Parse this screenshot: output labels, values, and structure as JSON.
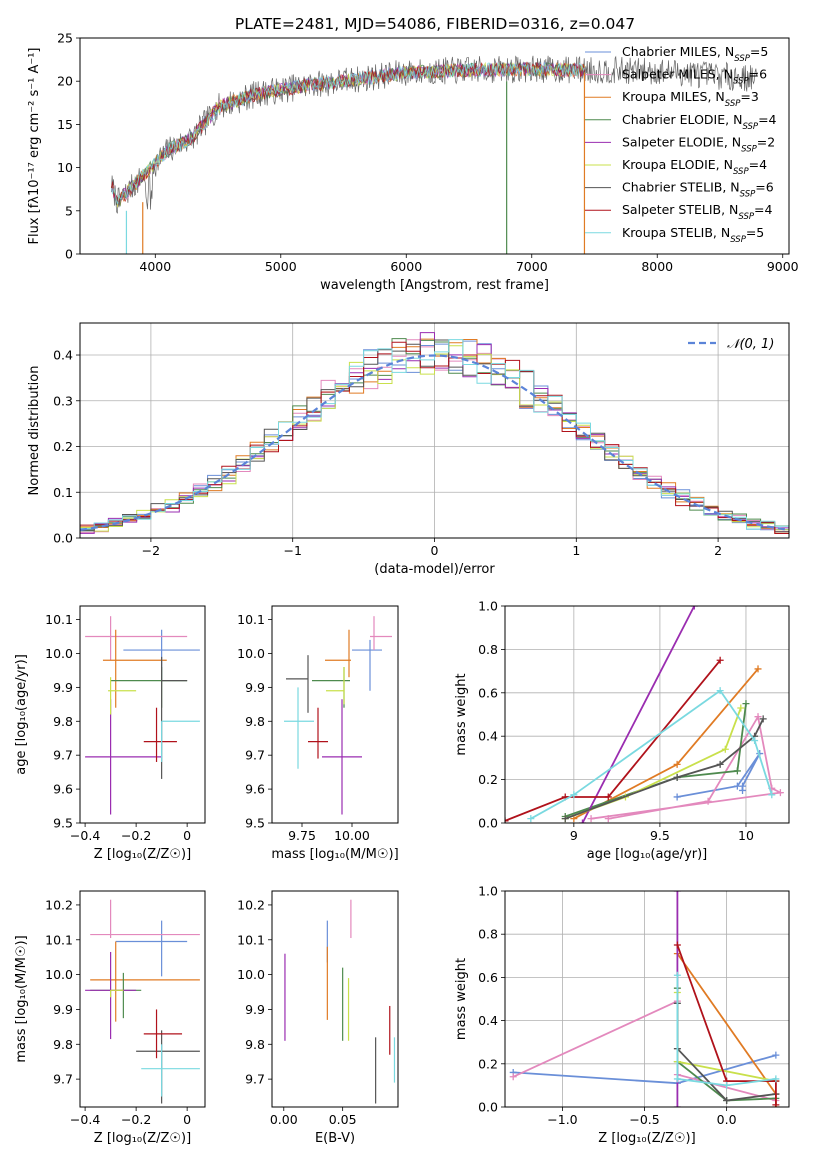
{
  "figure": {
    "title": "PLATE=2481, MJD=54086, FIBERID=0316, z=0.047"
  },
  "models": [
    {
      "name": "Chabrier MILES",
      "nssp": "5",
      "color": "#6a8fd8"
    },
    {
      "name": "Salpeter MILES",
      "nssp": "6",
      "color": "#e389bd"
    },
    {
      "name": "Kroupa MILES",
      "nssp": "3",
      "color": "#e07b24"
    },
    {
      "name": "Chabrier ELODIE",
      "nssp": "4",
      "color": "#4e8a4e"
    },
    {
      "name": "Salpeter ELODIE",
      "nssp": "2",
      "color": "#9a2db0"
    },
    {
      "name": "Kroupa ELODIE",
      "nssp": "4",
      "color": "#c9e04b"
    },
    {
      "name": "Chabrier STELIB",
      "nssp": "6",
      "color": "#555555"
    },
    {
      "name": "Salpeter STELIB",
      "nssp": "4",
      "color": "#b0121b"
    },
    {
      "name": "Kroupa STELIB",
      "nssp": "5",
      "color": "#7ad9e0"
    }
  ],
  "chart_data": [
    {
      "id": "spectrum",
      "type": "line",
      "xlabel": "wavelength [Angstrom, rest frame]",
      "ylabel": "Flux [fλ10⁻¹⁷ erg cm⁻² s⁻¹ A⁻¹]",
      "xlim": [
        3400,
        9050
      ],
      "ylim": [
        0,
        25
      ],
      "xticks": [
        4000,
        5000,
        6000,
        7000,
        8000,
        9000
      ],
      "yticks": [
        0,
        5,
        10,
        15,
        20,
        25
      ],
      "grid": false,
      "legend": "top-right",
      "observed_range": [
        3650,
        8800
      ],
      "model_range": [
        3650,
        7420
      ],
      "continuum": [
        [
          3650,
          8
        ],
        [
          3700,
          6
        ],
        [
          3800,
          7.5
        ],
        [
          3900,
          9
        ],
        [
          4000,
          10.5
        ],
        [
          4100,
          12
        ],
        [
          4300,
          13.5
        ],
        [
          4500,
          17
        ],
        [
          4800,
          18.5
        ],
        [
          5200,
          19.5
        ],
        [
          5600,
          20.2
        ],
        [
          6000,
          21
        ],
        [
          6500,
          21.3
        ],
        [
          7000,
          21.4
        ],
        [
          7400,
          21.3
        ],
        [
          7800,
          21.2
        ],
        [
          8200,
          21
        ],
        [
          8500,
          20.6
        ],
        [
          8800,
          20.3
        ]
      ]
    },
    {
      "id": "residuals",
      "type": "line",
      "xlabel": "(data-model)/error",
      "ylabel": "Normed distribution",
      "xlim": [
        -2.5,
        2.5
      ],
      "ylim": [
        0,
        0.47
      ],
      "xticks": [
        -2,
        -1,
        0,
        1,
        2
      ],
      "yticks": [
        0.0,
        0.1,
        0.2,
        0.3,
        0.4
      ],
      "grid": true,
      "legend": "top-right",
      "legend_label": "𝒩(0, 1)",
      "bin_width": 0.1,
      "series_style": "step histogram, one per model"
    },
    {
      "id": "age_vs_Z",
      "type": "scatter",
      "xlabel": "Z [log₁₀(Z/Z☉)]",
      "ylabel": "age  [log₁₀(age/yr)]",
      "xlim": [
        -0.42,
        0.07
      ],
      "ylim": [
        9.5,
        10.14
      ],
      "xticks": [
        -0.4,
        -0.2,
        0.0
      ],
      "yticks": [
        9.5,
        9.6,
        9.7,
        9.8,
        9.9,
        10.0,
        10.1
      ],
      "grid": false,
      "points": [
        {
          "x": -0.1,
          "y": 10.01,
          "xerr": [
            0.15,
            0.15
          ],
          "yerr": [
            0.09,
            0.06
          ]
        },
        {
          "x": -0.3,
          "y": 10.05,
          "xerr": [
            0.1,
            0.3
          ],
          "yerr": [
            0.07,
            0.06
          ]
        },
        {
          "x": -0.28,
          "y": 9.98,
          "xerr": [
            0.05,
            0.2
          ],
          "yerr": [
            0.14,
            0.09
          ]
        },
        {
          "x": -0.1,
          "y": 9.92,
          "xerr": [
            0.2,
            0.1
          ],
          "yerr": [
            0.08,
            0.04
          ]
        },
        {
          "x": -0.3,
          "y": 9.695,
          "xerr": [
            0.1,
            0.2
          ],
          "yerr": [
            0.17,
            0.17
          ]
        },
        {
          "x": -0.3,
          "y": 9.89,
          "xerr": [
            0.01,
            0.1
          ],
          "yerr": [
            0.07,
            0.04
          ]
        },
        {
          "x": -0.1,
          "y": 9.92,
          "xerr": [
            0.0,
            0.1
          ],
          "yerr": [
            0.29,
            0.07
          ]
        },
        {
          "x": -0.12,
          "y": 9.74,
          "xerr": [
            0.05,
            0.08
          ],
          "yerr": [
            0.06,
            0.1
          ]
        },
        {
          "x": -0.1,
          "y": 9.8,
          "xerr": [
            0.0,
            0.15
          ],
          "yerr": [
            0.12,
            0.0
          ]
        }
      ]
    },
    {
      "id": "age_vs_mass",
      "type": "scatter",
      "xlabel": "mass [log₁₀(M/M☉)]",
      "xlim": [
        9.6,
        10.23
      ],
      "ylim": [
        9.5,
        10.14
      ],
      "xticks": [
        9.75,
        10.0
      ],
      "xticklabels": [
        "9.75",
        "10.00"
      ],
      "yticks": [
        9.5,
        9.6,
        9.7,
        9.8,
        9.9,
        10.0,
        10.1
      ],
      "grid": false,
      "points": [
        {
          "x": 10.09,
          "y": 10.01,
          "xerr": [
            0.09,
            0.06
          ],
          "yerr": [
            0.12,
            0.03
          ]
        },
        {
          "x": 10.11,
          "y": 10.05,
          "xerr": [
            0.02,
            0.09
          ],
          "yerr": [
            0.04,
            0.06
          ]
        },
        {
          "x": 9.985,
          "y": 9.98,
          "xerr": [
            0.12,
            0.01
          ],
          "yerr": [
            0.05,
            0.09
          ]
        },
        {
          "x": 9.96,
          "y": 9.92,
          "xerr": [
            0.16,
            0.03
          ],
          "yerr": [
            0.08,
            0.04
          ]
        },
        {
          "x": 9.95,
          "y": 9.695,
          "xerr": [
            0.1,
            0.1
          ],
          "yerr": [
            0.17,
            0.17
          ]
        },
        {
          "x": 9.96,
          "y": 9.89,
          "xerr": [
            0.09,
            0.0
          ],
          "yerr": [
            0.04,
            0.07
          ]
        },
        {
          "x": 9.78,
          "y": 9.925,
          "xerr": [
            0.11,
            0.0
          ],
          "yerr": [
            0.1,
            0.07
          ]
        },
        {
          "x": 9.83,
          "y": 9.74,
          "xerr": [
            0.05,
            0.05
          ],
          "yerr": [
            0.05,
            0.1
          ]
        },
        {
          "x": 9.73,
          "y": 9.8,
          "xerr": [
            0.07,
            0.08
          ],
          "yerr": [
            0.14,
            0.1
          ]
        }
      ]
    },
    {
      "id": "weight_vs_age",
      "type": "line",
      "xlabel": "age  [log₁₀(age/yr)]",
      "ylabel": "mass weight",
      "xlim": [
        8.6,
        10.25
      ],
      "ylim": [
        0.0,
        1.0
      ],
      "xticks": [
        9.0,
        9.5,
        10.0
      ],
      "yticks": [
        0.0,
        0.2,
        0.4,
        0.6,
        0.8,
        1.0
      ],
      "grid": true,
      "series": [
        {
          "model": 0,
          "x": [
            9.6,
            9.95,
            10.08,
            9.98,
            9.98
          ],
          "y": [
            0.12,
            0.17,
            0.32,
            0.17,
            0.15
          ]
        },
        {
          "model": 1,
          "x": [
            9.2,
            9.78,
            10.07,
            10.15,
            10.2,
            9.1
          ],
          "y": [
            0.02,
            0.1,
            0.49,
            0.16,
            0.14,
            0.02
          ]
        },
        {
          "model": 2,
          "x": [
            9.0,
            9.6,
            10.07
          ],
          "y": [
            0.02,
            0.27,
            0.71
          ]
        },
        {
          "model": 3,
          "x": [
            8.95,
            9.6,
            9.95,
            10.0
          ],
          "y": [
            0.03,
            0.21,
            0.24,
            0.55
          ]
        },
        {
          "model": 4,
          "x": [
            9.05,
            9.7
          ],
          "y": [
            0.0,
            1.0
          ]
        },
        {
          "model": 5,
          "x": [
            8.95,
            9.3,
            9.88,
            9.97
          ],
          "y": [
            0.02,
            0.12,
            0.34,
            0.53
          ]
        },
        {
          "model": 6,
          "x": [
            8.95,
            9.6,
            9.85,
            10.05,
            10.1
          ],
          "y": [
            0.02,
            0.21,
            0.27,
            0.4,
            0.48
          ]
        },
        {
          "model": 7,
          "x": [
            8.6,
            8.95,
            9.2,
            9.85
          ],
          "y": [
            0.01,
            0.12,
            0.12,
            0.75
          ]
        },
        {
          "model": 8,
          "x": [
            8.75,
            9.0,
            9.85,
            10.05,
            10.15
          ],
          "y": [
            0.02,
            0.13,
            0.61,
            0.38,
            0.13
          ]
        }
      ]
    },
    {
      "id": "mass_vs_Z",
      "type": "scatter",
      "xlabel": "Z [log₁₀(Z/Z☉)]",
      "ylabel": "mass [log₁₀(M/M☉)]",
      "xlim": [
        -0.42,
        0.07
      ],
      "ylim": [
        9.62,
        10.24
      ],
      "xticks": [
        -0.4,
        -0.2,
        0.0
      ],
      "yticks": [
        9.7,
        9.8,
        9.9,
        10.0,
        10.1,
        10.2
      ],
      "grid": false,
      "points": [
        {
          "x": -0.1,
          "y": 10.095,
          "xerr": [
            0.18,
            0.1
          ],
          "yerr": [
            0.1,
            0.06
          ]
        },
        {
          "x": -0.3,
          "y": 10.115,
          "xerr": [
            0.08,
            0.35
          ],
          "yerr": [
            0.01,
            0.1
          ]
        },
        {
          "x": -0.28,
          "y": 9.985,
          "xerr": [
            0.1,
            0.33
          ],
          "yerr": [
            0.12,
            0.11
          ]
        },
        {
          "x": -0.25,
          "y": 9.955,
          "xerr": [
            0.13,
            0.07
          ],
          "yerr": [
            0.08,
            0.05
          ]
        },
        {
          "x": -0.3,
          "y": 9.955,
          "xerr": [
            0.1,
            0.1
          ],
          "yerr": [
            0.14,
            0.11
          ]
        },
        {
          "x": -0.3,
          "y": 9.955,
          "xerr": [
            0.0,
            0.05
          ],
          "yerr": [
            0.02,
            0.0
          ]
        },
        {
          "x": -0.1,
          "y": 9.78,
          "xerr": [
            0.1,
            0.15
          ],
          "yerr": [
            0.15,
            0.06
          ]
        },
        {
          "x": -0.12,
          "y": 9.83,
          "xerr": [
            0.05,
            0.1
          ],
          "yerr": [
            0.07,
            0.07
          ]
        },
        {
          "x": -0.1,
          "y": 9.73,
          "xerr": [
            0.08,
            0.15
          ],
          "yerr": [
            0.08,
            0.07
          ]
        }
      ]
    },
    {
      "id": "mass_vs_ebv",
      "type": "scatter",
      "xlabel": "E(B-V)",
      "xlim": [
        -0.01,
        0.097
      ],
      "ylim": [
        9.62,
        10.24
      ],
      "xticks": [
        0.0,
        0.05
      ],
      "xticklabels": [
        "0.00",
        "0.05"
      ],
      "yticks": [
        9.7,
        9.8,
        9.9,
        10.0,
        10.1,
        10.2
      ],
      "grid": false,
      "points": [
        {
          "x": 0.037,
          "y": 10.095,
          "yerr": [
            0.06,
            0.06
          ]
        },
        {
          "x": 0.057,
          "y": 10.115,
          "yerr": [
            0.01,
            0.1
          ]
        },
        {
          "x": 0.037,
          "y": 9.97,
          "yerr": [
            0.1,
            0.11
          ]
        },
        {
          "x": 0.05,
          "y": 9.92,
          "yerr": [
            0.11,
            0.1
          ]
        },
        {
          "x": 0.001,
          "y": 9.94,
          "yerr": [
            0.13,
            0.12
          ]
        },
        {
          "x": 0.055,
          "y": 9.92,
          "yerr": [
            0.11,
            0.07
          ]
        },
        {
          "x": 0.078,
          "y": 9.72,
          "yerr": [
            0.09,
            0.1
          ]
        },
        {
          "x": 0.09,
          "y": 9.84,
          "yerr": [
            0.07,
            0.07
          ]
        },
        {
          "x": 0.094,
          "y": 9.72,
          "yerr": [
            0.03,
            0.1
          ]
        }
      ]
    },
    {
      "id": "weight_vs_Z",
      "type": "line",
      "xlabel": "Z [log₁₀(Z/Z☉)]",
      "ylabel": "mass weight",
      "xlim": [
        -1.35,
        0.38
      ],
      "ylim": [
        0.0,
        1.0
      ],
      "xticks": [
        -1.0,
        -0.5,
        0.0
      ],
      "xticklabels": [
        "−1.0",
        "−0.5",
        "0.0"
      ],
      "yticks": [
        0.0,
        0.2,
        0.4,
        0.6,
        0.8,
        1.0
      ],
      "grid": true,
      "series": [
        {
          "model": 0,
          "x": [
            -1.3,
            -0.3,
            0.3
          ],
          "y": [
            0.16,
            0.11,
            0.24
          ]
        },
        {
          "model": 1,
          "x": [
            -1.3,
            -0.3,
            -0.3,
            0.3
          ],
          "y": [
            0.14,
            0.49,
            0.15,
            0.03
          ]
        },
        {
          "model": 2,
          "x": [
            -0.3,
            0.3,
            0.3
          ],
          "y": [
            0.71,
            0.06,
            0.0
          ]
        },
        {
          "model": 3,
          "x": [
            -0.3,
            -0.3,
            0.0,
            0.3
          ],
          "y": [
            0.55,
            0.21,
            0.03,
            0.04
          ]
        },
        {
          "model": 4,
          "x": [
            -0.3,
            -0.3
          ],
          "y": [
            1.0,
            0.0
          ]
        },
        {
          "model": 5,
          "x": [
            -0.3,
            -0.3,
            0.3
          ],
          "y": [
            0.53,
            0.21,
            0.12
          ]
        },
        {
          "model": 6,
          "x": [
            -0.3,
            -0.3,
            0.0,
            0.3
          ],
          "y": [
            0.48,
            0.27,
            0.03,
            0.06
          ]
        },
        {
          "model": 7,
          "x": [
            -0.3,
            0.0,
            0.3,
            0.3
          ],
          "y": [
            0.75,
            0.12,
            0.12,
            0.01
          ]
        },
        {
          "model": 8,
          "x": [
            -0.3,
            -0.3,
            0.0,
            0.3
          ],
          "y": [
            0.61,
            0.13,
            0.1,
            0.13
          ]
        }
      ]
    }
  ]
}
